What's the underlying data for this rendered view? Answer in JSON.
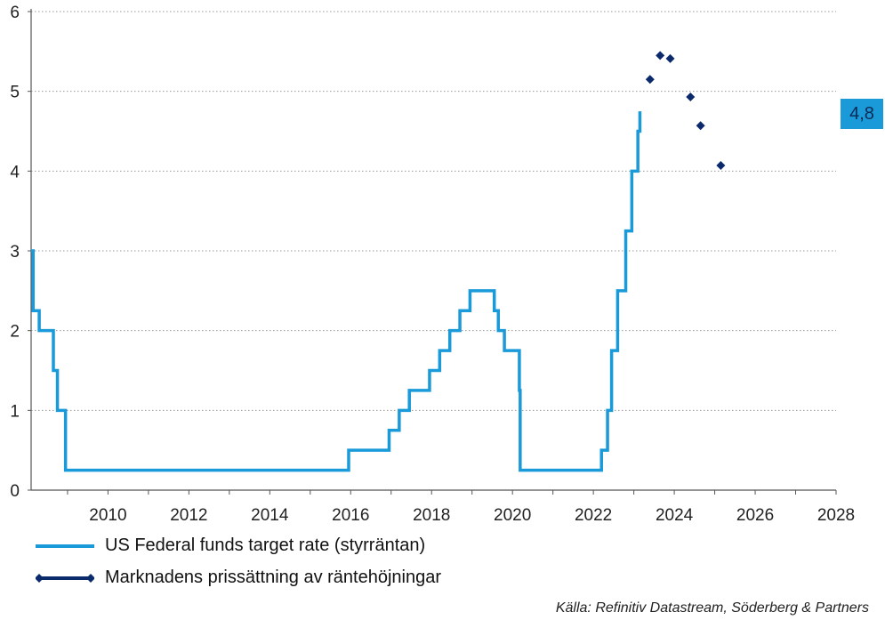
{
  "chart_data": {
    "type": "line",
    "title": "",
    "xlabel": "",
    "ylabel": "",
    "xlim": [
      2008.1,
      2028
    ],
    "ylim": [
      0,
      6
    ],
    "x_ticks": [
      "2010",
      "2012",
      "2014",
      "2016",
      "2018",
      "2020",
      "2022",
      "2024",
      "2026",
      "2028"
    ],
    "y_ticks": [
      "0",
      "1",
      "2",
      "3",
      "4",
      "5",
      "6"
    ],
    "grid": "horizontal-dotted",
    "series": [
      {
        "name": "US Federal funds target rate (styrräntan)",
        "color": "#1a9ad9",
        "style": "step",
        "x": [
          2008.1,
          2008.15,
          2008.3,
          2008.65,
          2008.75,
          2008.95,
          2015.95,
          2016.95,
          2017.2,
          2017.45,
          2017.95,
          2018.2,
          2018.45,
          2018.7,
          2018.95,
          2019.55,
          2019.65,
          2019.8,
          2020.17,
          2020.19,
          2022.2,
          2022.35,
          2022.45,
          2022.6,
          2022.8,
          2022.95,
          2023.1
        ],
        "y": [
          3.0,
          2.25,
          2.0,
          1.5,
          1.0,
          0.25,
          0.5,
          0.75,
          1.0,
          1.25,
          1.5,
          1.75,
          2.0,
          2.25,
          2.5,
          2.25,
          2.0,
          1.75,
          1.25,
          0.25,
          0.5,
          1.0,
          1.75,
          2.5,
          3.25,
          4.0,
          4.5
        ]
      },
      {
        "name": "Marknadens prissättning av räntehöjningar",
        "color": "#0b2a6b",
        "style": "markers",
        "marker": "diamond",
        "x": [
          2023.4,
          2023.65,
          2023.9,
          2024.4,
          2024.65,
          2025.15
        ],
        "y": [
          5.15,
          5.45,
          5.41,
          4.93,
          4.57,
          4.07
        ]
      }
    ],
    "series_end_x": 2023.15,
    "series_end_y": 4.75,
    "legend_position": "bottom-left",
    "callout": {
      "text": "4,8",
      "color": "#1a9ad9"
    },
    "source": "Källa: Refinitiv Datastream, Söderberg & Partners"
  }
}
